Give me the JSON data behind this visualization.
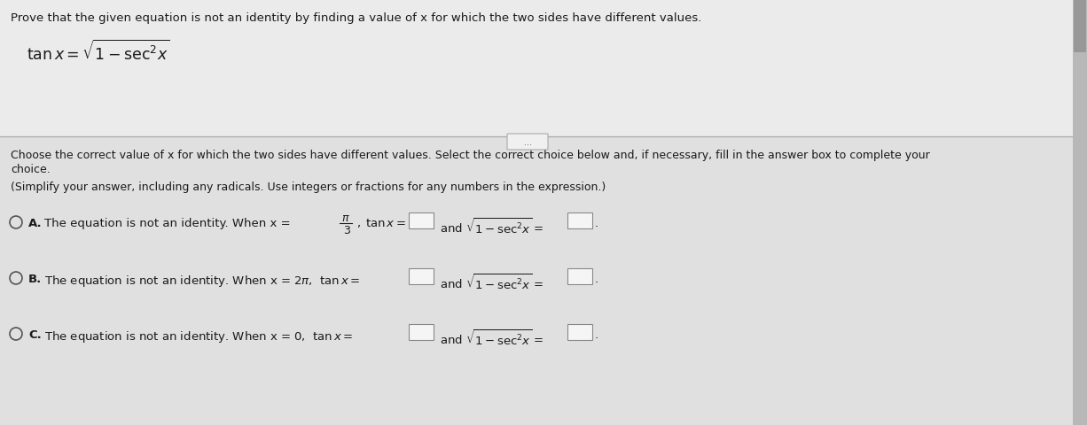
{
  "bg_color": "#c8c8c8",
  "top_panel_color": "#ebebeb",
  "bot_panel_color": "#e0e0e0",
  "text_color": "#1a1a1a",
  "title": "Prove that the given equation is not an identity by finding a value of x for which the two sides have different values.",
  "instruction1": "Choose the correct value of x for which the two sides have different values. Select the correct choice below and, if necessary, fill in the answer box to complete your",
  "instruction2": "choice.",
  "simplify": "(Simplify your answer, including any radicals. Use integers or fractions for any numbers in the expression.)",
  "choice_A_text": "The equation is not an identity. When x = ",
  "choice_B_text": "The equation is not an identity. When x = 2",
  "choice_C_text": "The equation is not an identity. When x = 0, ",
  "font_size_title": 9.5,
  "font_size_body": 9.0,
  "font_size_choice": 9.5,
  "font_size_eq": 12.5
}
